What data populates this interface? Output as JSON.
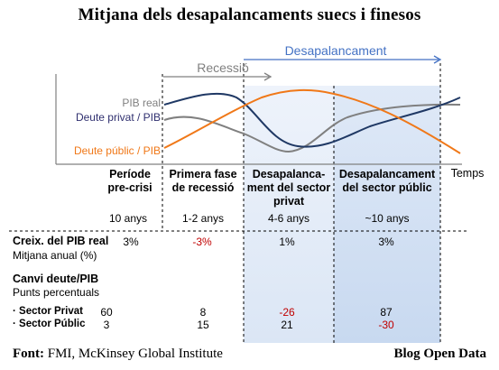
{
  "title": "Mitjana dels desapalancaments suecs i finesos",
  "chart_data": {
    "type": "line",
    "xlabel": "Temps",
    "series_labels": [
      "PIB real",
      "Deute privat / PIB",
      "Deute públic / PIB"
    ],
    "phase_arrows": [
      {
        "label": "Recessió"
      },
      {
        "label": "Desapalancament"
      }
    ],
    "colors": {
      "pib": "#808080",
      "privat": "#1f3864",
      "public": "#f07818",
      "arrow_recessio": "#808080",
      "arrow_desap": "#4472c4",
      "negative": "#c00000"
    }
  },
  "phases": [
    {
      "name": "Període pre-crisi",
      "duration": "10 anys"
    },
    {
      "name": "Primera fase de recessió",
      "duration": "1-2 anys"
    },
    {
      "name": "Desapalanca-ment del sector privat",
      "duration": "4-6 anys"
    },
    {
      "name": "Desapalancament del sector públic",
      "duration": "~10 anys"
    }
  ],
  "gdp_growth": {
    "title": "Creix. del PIB real",
    "subtitle": "Mitjana anual (%)",
    "values": [
      "3%",
      "-3%",
      "1%",
      "3%"
    ]
  },
  "debt_change": {
    "title": "Canvi deute/PIB",
    "subtitle": "Punts percentuals",
    "rows": [
      {
        "label": "· Sector Privat",
        "values": [
          "60",
          "8",
          "-26",
          "87"
        ]
      },
      {
        "label": "· Sector Públic",
        "values": [
          "3",
          "15",
          "21",
          "-30"
        ]
      }
    ]
  },
  "footer": {
    "source_label": "Font:",
    "source": "FMI, McKinsey Global Institute",
    "credit": "Blog Open Data"
  }
}
